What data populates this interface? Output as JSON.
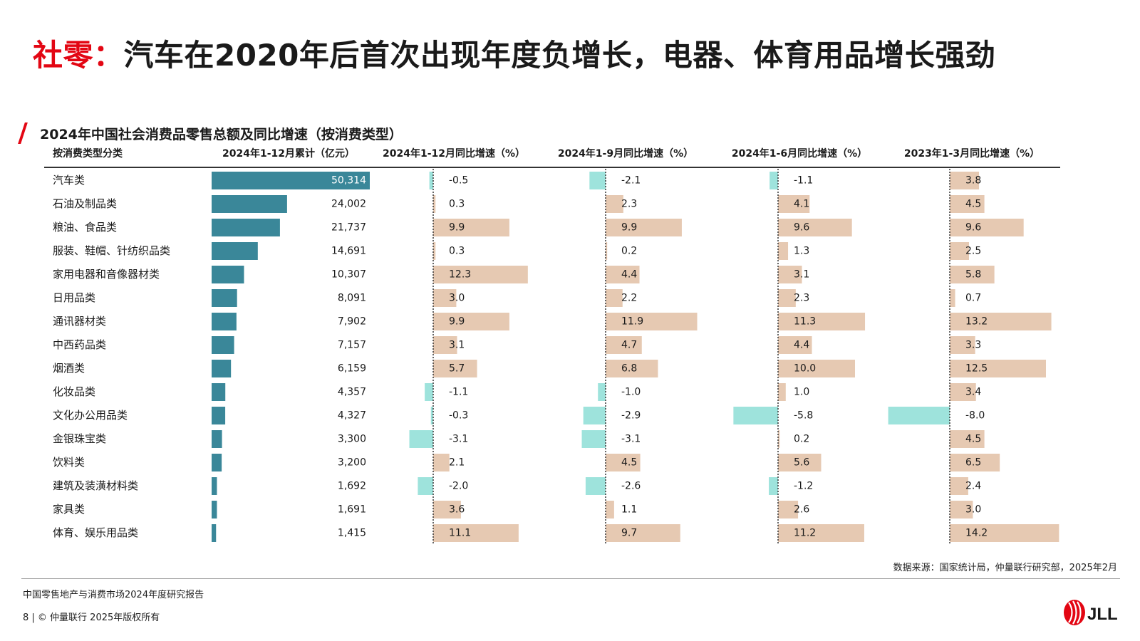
{
  "header": {
    "title_accent": "社零：",
    "title_rest": "汽车在2020年后首次出现年度负增长，电器、体育用品增长强劲"
  },
  "chart_data": {
    "type": "table",
    "title": "2024年中国社会消费品零售总额及同比增速（按消费类型）",
    "columns": [
      "按消费类型分类",
      "2024年1-12月累计（亿元）",
      "2024年1-12月同比增速（%）",
      "2024年1-9月同比增速（%）",
      "2024年1-6月同比增速（%）",
      "2023年1-3月同比增速（%）"
    ],
    "categories": [
      "汽车类",
      "石油及制品类",
      "粮油、食品类",
      "服装、鞋帽、针纺织品类",
      "家用电器和音像器材类",
      "日用品类",
      "通讯器材类",
      "中西药品类",
      "烟酒类",
      "化妆品类",
      "文化办公用品类",
      "金银珠宝类",
      "饮料类",
      "建筑及装潢材料类",
      "家具类",
      "体育、娱乐用品类"
    ],
    "series": [
      {
        "name": "2024年1-12月累计（亿元）",
        "values": [
          50314,
          24002,
          21737,
          14691,
          10307,
          8091,
          7902,
          7157,
          6159,
          4357,
          4327,
          3300,
          3200,
          1692,
          1691,
          1415
        ],
        "labels": [
          "50,314",
          "24,002",
          "21,737",
          "14,691",
          "10,307",
          "8,091",
          "7,902",
          "7,157",
          "6,159",
          "4,357",
          "4,327",
          "3,300",
          "3,200",
          "1,692",
          "1,691",
          "1,415"
        ]
      },
      {
        "name": "2024年1-12月同比增速（%）",
        "values": [
          -0.5,
          0.3,
          9.9,
          0.3,
          12.3,
          3.0,
          9.9,
          3.1,
          5.7,
          -1.1,
          -0.3,
          -3.1,
          2.1,
          -2.0,
          3.6,
          11.1
        ],
        "labels": [
          "-0.5",
          "0.3",
          "9.9",
          "0.3",
          "12.3",
          "3.0",
          "9.9",
          "3.1",
          "5.7",
          "-1.1",
          "-0.3",
          "-3.1",
          "2.1",
          "-2.0",
          "3.6",
          "11.1"
        ]
      },
      {
        "name": "2024年1-9月同比增速（%）",
        "values": [
          -2.1,
          2.3,
          9.9,
          0.2,
          4.4,
          2.2,
          11.9,
          4.7,
          6.8,
          -1.0,
          -2.9,
          -3.1,
          4.5,
          -2.6,
          1.1,
          9.7
        ],
        "labels": [
          "-2.1",
          "2.3",
          "9.9",
          "0.2",
          "4.4",
          "2.2",
          "11.9",
          "4.7",
          "6.8",
          "-1.0",
          "-2.9",
          "-3.1",
          "4.5",
          "-2.6",
          "1.1",
          "9.7"
        ]
      },
      {
        "name": "2024年1-6月同比增速（%）",
        "values": [
          -1.1,
          4.1,
          9.6,
          1.3,
          3.1,
          2.3,
          11.3,
          4.4,
          10.0,
          1.0,
          -5.8,
          0.2,
          5.6,
          -1.2,
          2.6,
          11.2
        ],
        "labels": [
          "-1.1",
          "4.1",
          "9.6",
          "1.3",
          "3.1",
          "2.3",
          "11.3",
          "4.4",
          "10.0",
          "1.0",
          "-5.8",
          "0.2",
          "5.6",
          "-1.2",
          "2.6",
          "11.2"
        ]
      },
      {
        "name": "2023年1-3月同比增速（%）",
        "values": [
          3.8,
          4.5,
          9.6,
          2.5,
          5.8,
          0.7,
          13.2,
          3.3,
          12.5,
          3.4,
          -8.0,
          4.5,
          6.5,
          2.4,
          3.0,
          14.2
        ],
        "labels": [
          "3.8",
          "4.5",
          "9.6",
          "2.5",
          "5.8",
          "0.7",
          "13.2",
          "3.3",
          "12.5",
          "3.4",
          "-8.0",
          "4.5",
          "6.5",
          "2.4",
          "3.0",
          "14.2"
        ]
      }
    ],
    "colors": {
      "total_bar": "#3a8799",
      "positive_bar": "#e6c9b2",
      "negative_bar": "#9ee3dc",
      "baseline": "#333333",
      "rule": "#333333"
    }
  },
  "footer": {
    "source": "数据来源：国家统计局，仲量联行研究部，2025年2月",
    "report": "中国零售地产与消费市场2024年度研究报告",
    "copyright": "8 | © 仲量联行 2025年版权所有",
    "logo_text": "JLL"
  },
  "brand": {
    "accent": "#e30613"
  }
}
